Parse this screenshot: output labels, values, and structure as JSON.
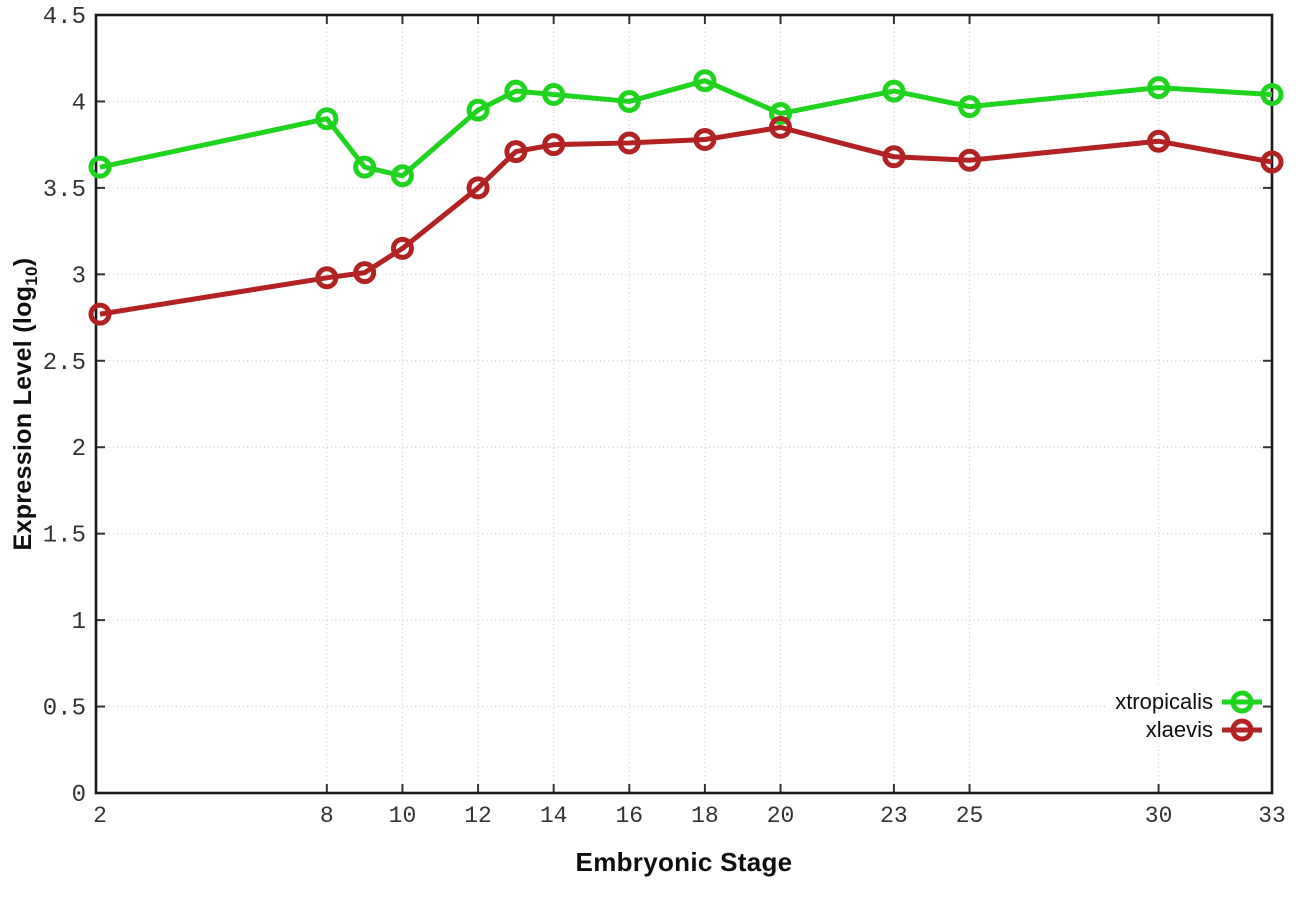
{
  "figure": {
    "xlabel": "Embryonic Stage",
    "ylabel": {
      "prefix": "Expression Level (log",
      "sub": "10",
      "suffix": ")"
    }
  },
  "legend": {
    "position": "bottom-right",
    "items": [
      {
        "label": "xtropicalis",
        "color": "#1fd31f"
      },
      {
        "label": "xlaevis",
        "color": "#b22222"
      }
    ]
  },
  "chart_data": {
    "type": "line",
    "title": "",
    "xlabel": "Embryonic Stage",
    "ylabel": "Expression Level (log10)",
    "x": [
      2,
      8,
      9,
      10,
      12,
      13,
      14,
      16,
      18,
      20,
      23,
      25,
      30,
      33
    ],
    "series": [
      {
        "name": "xtropicalis",
        "color": "#1fd31f",
        "marker": "open-circle",
        "values": [
          3.62,
          3.9,
          3.62,
          3.57,
          3.95,
          4.06,
          4.04,
          4.0,
          4.12,
          3.93,
          4.06,
          3.97,
          4.08,
          4.04
        ]
      },
      {
        "name": "xlaevis",
        "color": "#b22222",
        "marker": "open-circle",
        "values": [
          2.77,
          2.98,
          3.01,
          3.15,
          3.5,
          3.71,
          3.75,
          3.76,
          3.78,
          3.85,
          3.68,
          3.66,
          3.77,
          3.65
        ]
      }
    ],
    "xlim": [
      2,
      33
    ],
    "ylim": [
      0,
      4.5
    ],
    "x_ticks": [
      2,
      8,
      10,
      12,
      14,
      16,
      18,
      20,
      23,
      25,
      30,
      33
    ],
    "x_tick_labels": [
      "2",
      "8",
      "10",
      "12",
      "14",
      "16",
      "18",
      "20",
      "23",
      "25",
      "30",
      "33"
    ],
    "y_ticks": [
      0,
      0.5,
      1,
      1.5,
      2,
      2.5,
      3,
      3.5,
      4,
      4.5
    ],
    "y_tick_labels": [
      "0",
      "0.5",
      "1",
      "1.5",
      "2",
      "2.5",
      "3",
      "3.5",
      "4",
      "4.5"
    ],
    "grid": true,
    "legend_position": "bottom-right"
  },
  "colors": {
    "background": "#ffffff",
    "border": "#1a1a1a",
    "grid": "#c0c0c0",
    "tick": "#333333",
    "text": "#0e0e0e"
  }
}
